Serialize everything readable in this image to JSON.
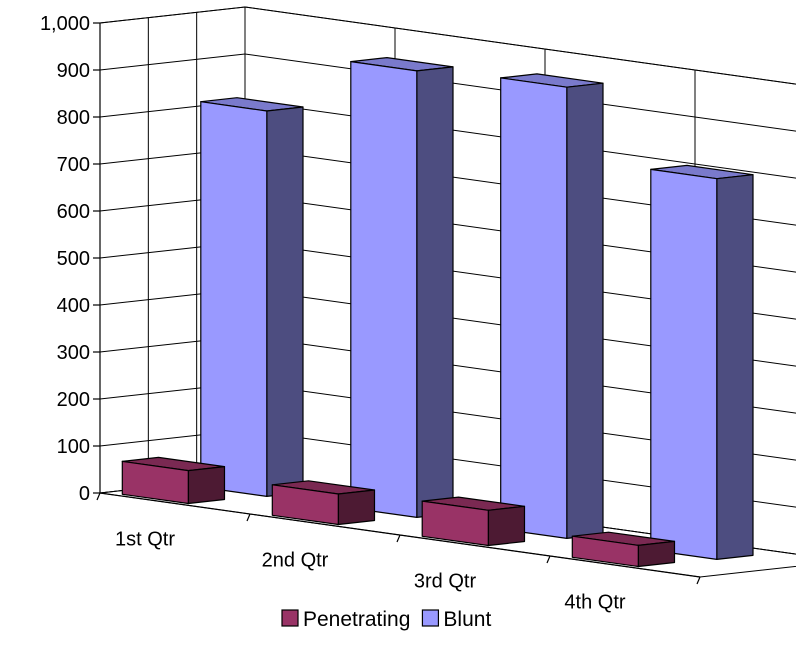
{
  "chart_data": {
    "type": "bar",
    "title": "",
    "xlabel": "",
    "ylabel": "",
    "categories": [
      "1st Qtr",
      "2nd Qtr",
      "3rd Qtr",
      "4th Qtr"
    ],
    "series": [
      {
        "name": "Penetrating",
        "values": [
          70,
          65,
          75,
          45
        ],
        "color": "#993366",
        "side_color": "#4d1a33",
        "top_color": "#7a2952"
      },
      {
        "name": "Blunt",
        "values": [
          820,
          950,
          960,
          810
        ],
        "color": "#9999ff",
        "side_color": "#4d4d80",
        "top_color": "#7a7acc"
      }
    ],
    "ylim": [
      0,
      1000
    ],
    "yticks": [
      "0",
      "100",
      "200",
      "300",
      "400",
      "500",
      "600",
      "700",
      "800",
      "900",
      "1,000"
    ],
    "grid": true,
    "legend_position": "bottom",
    "view": "3d-clustered-column"
  }
}
